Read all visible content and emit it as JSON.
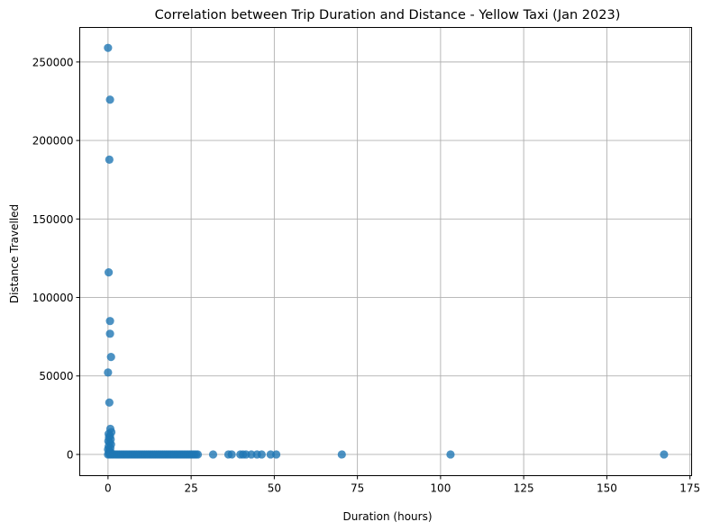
{
  "chart_data": {
    "type": "scatter",
    "title": "Correlation between Trip Duration and Distance - Yellow Taxi (Jan 2023)",
    "xlabel": "Duration (hours)",
    "ylabel": "Distance Travelled",
    "xlim": [
      -8.5,
      175.5
    ],
    "ylim": [
      -13500,
      272000
    ],
    "xticks": [
      0,
      25,
      50,
      75,
      100,
      125,
      150,
      175
    ],
    "yticks": [
      0,
      50000,
      100000,
      150000,
      200000,
      250000
    ],
    "xtick_labels": [
      "0",
      "25",
      "50",
      "75",
      "100",
      "125",
      "150",
      "175"
    ],
    "ytick_labels": [
      "0",
      "50000",
      "100000",
      "150000",
      "200000",
      "250000"
    ],
    "grid": true,
    "marker_color": "#1f77b4",
    "marker_alpha": 0.8,
    "series": [
      {
        "points": [
          [
            0.0,
            259000
          ],
          [
            0.6,
            226000
          ],
          [
            0.4,
            187800
          ],
          [
            0.2,
            116000
          ],
          [
            0.6,
            85000
          ],
          [
            0.6,
            76900
          ],
          [
            0.9,
            62100
          ],
          [
            0.0,
            52200
          ],
          [
            0.4,
            33100
          ],
          [
            0.7,
            16300
          ],
          [
            1.0,
            14200
          ],
          [
            0.2,
            13100
          ],
          [
            0.6,
            12000
          ],
          [
            0.3,
            10800
          ],
          [
            0.8,
            9700
          ],
          [
            0.1,
            8600
          ],
          [
            0.5,
            7500
          ],
          [
            0.9,
            6400
          ],
          [
            0.2,
            5200
          ],
          [
            0.7,
            4100
          ],
          [
            0.0,
            3200
          ],
          [
            0.4,
            2300
          ],
          [
            0.8,
            1500
          ],
          [
            0.3,
            800
          ],
          [
            0.0,
            0
          ],
          [
            0.5,
            0
          ],
          [
            1.0,
            0
          ],
          [
            1.5,
            0
          ],
          [
            2.0,
            0
          ],
          [
            2.5,
            0
          ],
          [
            3.0,
            0
          ],
          [
            3.5,
            0
          ],
          [
            4.0,
            0
          ],
          [
            4.5,
            0
          ],
          [
            5.0,
            0
          ],
          [
            5.5,
            0
          ],
          [
            6.0,
            0
          ],
          [
            6.5,
            0
          ],
          [
            7.0,
            0
          ],
          [
            7.5,
            0
          ],
          [
            8.0,
            0
          ],
          [
            8.5,
            0
          ],
          [
            9.0,
            0
          ],
          [
            9.5,
            0
          ],
          [
            10.0,
            0
          ],
          [
            10.5,
            0
          ],
          [
            11.0,
            0
          ],
          [
            11.5,
            0
          ],
          [
            12.0,
            0
          ],
          [
            12.5,
            0
          ],
          [
            13.0,
            0
          ],
          [
            13.5,
            0
          ],
          [
            14.0,
            0
          ],
          [
            14.5,
            0
          ],
          [
            15.0,
            0
          ],
          [
            15.5,
            0
          ],
          [
            16.0,
            0
          ],
          [
            16.5,
            0
          ],
          [
            17.0,
            0
          ],
          [
            17.5,
            0
          ],
          [
            18.0,
            0
          ],
          [
            18.5,
            0
          ],
          [
            19.0,
            0
          ],
          [
            19.5,
            0
          ],
          [
            20.0,
            0
          ],
          [
            20.5,
            0
          ],
          [
            21.0,
            0
          ],
          [
            21.5,
            0
          ],
          [
            22.0,
            0
          ],
          [
            22.5,
            0
          ],
          [
            23.0,
            0
          ],
          [
            23.5,
            0
          ],
          [
            24.0,
            0
          ],
          [
            24.5,
            0
          ],
          [
            25.0,
            0
          ],
          [
            25.5,
            0
          ],
          [
            26.0,
            0
          ],
          [
            26.5,
            0
          ],
          [
            27.0,
            0
          ],
          [
            31.6,
            0
          ],
          [
            36.2,
            0
          ],
          [
            37.2,
            0
          ],
          [
            39.8,
            0
          ],
          [
            40.6,
            0
          ],
          [
            41.5,
            0
          ],
          [
            43.1,
            0
          ],
          [
            44.8,
            0
          ],
          [
            46.2,
            0
          ],
          [
            48.9,
            0
          ],
          [
            50.6,
            0
          ],
          [
            70.3,
            0
          ],
          [
            103.0,
            0
          ],
          [
            167.2,
            0
          ]
        ]
      }
    ]
  }
}
